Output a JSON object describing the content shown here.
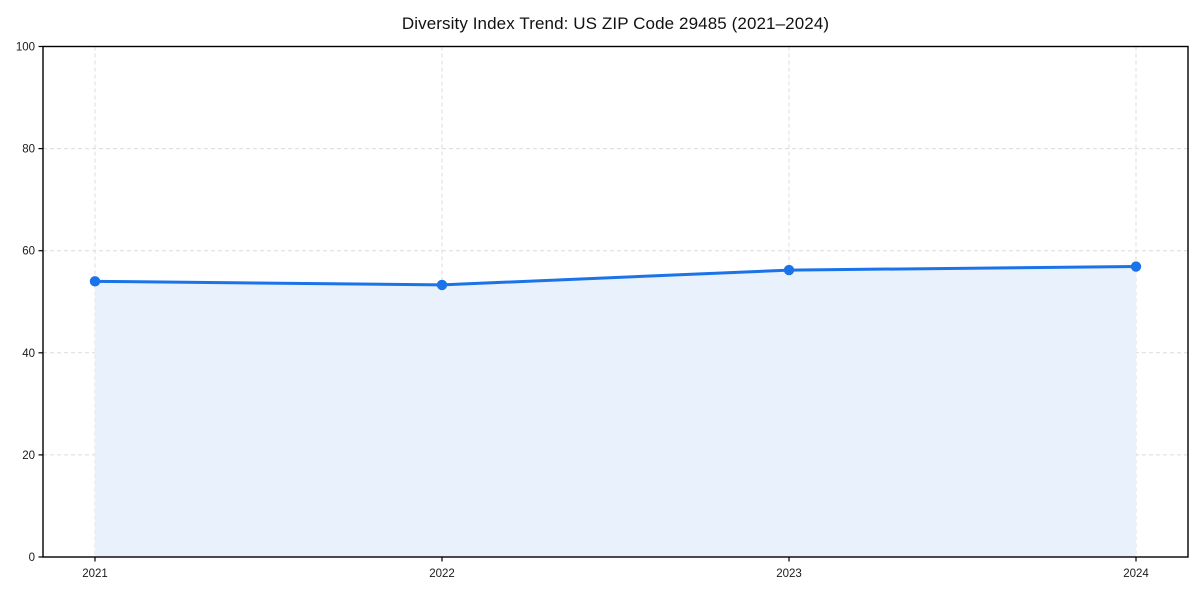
{
  "chart_data": {
    "type": "area",
    "title": "Diversity Index Trend: US ZIP Code 29485 (2021–2024)",
    "x": [
      "2021",
      "2022",
      "2023",
      "2024"
    ],
    "series": [
      {
        "name": "Diversity Index",
        "values": [
          54.0,
          53.3,
          56.2,
          56.9
        ]
      }
    ],
    "ylim": [
      0,
      100
    ],
    "yticks": [
      0,
      20,
      40,
      60,
      80,
      100
    ],
    "grid": "dashed-both-axes",
    "legend_position": "none",
    "marker": "circle",
    "colors": {
      "line": "#1a73e8",
      "marker": "#1a73e8",
      "fill": "#e8f1fc",
      "gridline": "#dcdcdc",
      "spine": "#000000",
      "tick_label": "#1a1a1a",
      "title": "#111111",
      "background": "#ffffff"
    }
  }
}
